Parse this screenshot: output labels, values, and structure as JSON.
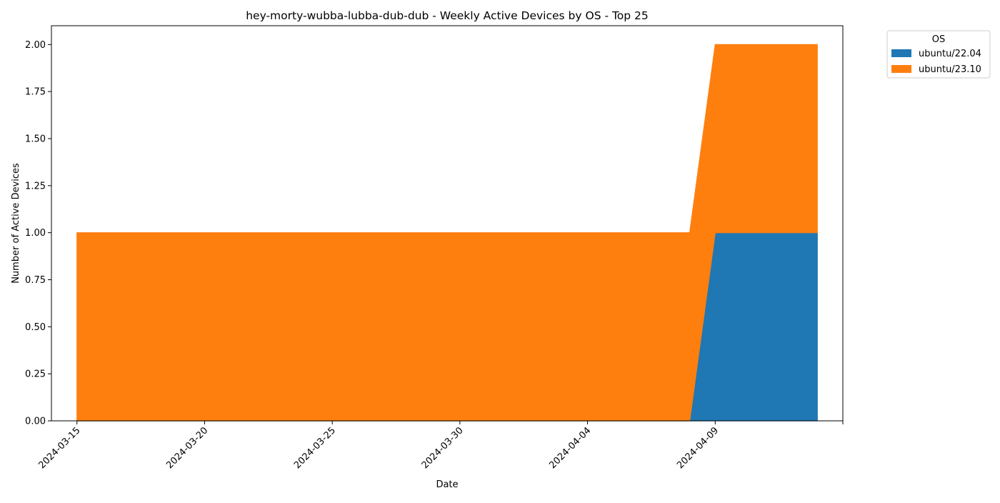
{
  "chart_data": {
    "type": "area",
    "stacked": true,
    "title": "hey-morty-wubba-lubba-dub-dub - Weekly Active Devices by OS - Top 25",
    "xlabel": "Date",
    "ylabel": "Number of Active Devices",
    "x": [
      "2024-03-15",
      "2024-04-08",
      "2024-04-09",
      "2024-04-13"
    ],
    "series": [
      {
        "name": "ubuntu/22.04",
        "color": "#1f77b4",
        "values": [
          0,
          0,
          1,
          1
        ]
      },
      {
        "name": "ubuntu/23.10",
        "color": "#ff7f0e",
        "values": [
          1,
          1,
          1,
          1
        ]
      }
    ],
    "xlim": [
      "2024-03-14",
      "2024-04-14"
    ],
    "ylim": [
      0,
      2.1
    ],
    "x_ticks": [
      "2024-03-15",
      "2024-03-20",
      "2024-03-25",
      "2024-03-30",
      "2024-04-04",
      "2024-04-09",
      "2024-04-14"
    ],
    "x_tick_labels": [
      "2024-03-15",
      "2024-03-20",
      "2024-03-25",
      "2024-03-30",
      "2024-04-04",
      "2024-04-09",
      ""
    ],
    "y_ticks": [
      0,
      0.25,
      0.5,
      0.75,
      1.0,
      1.25,
      1.5,
      1.75,
      2.0
    ],
    "y_tick_labels": [
      "0.00",
      "0.25",
      "0.50",
      "0.75",
      "1.00",
      "1.25",
      "1.50",
      "1.75",
      "2.00"
    ],
    "grid": false,
    "legend": {
      "title": "OS",
      "placement": "outside-top-right"
    }
  }
}
